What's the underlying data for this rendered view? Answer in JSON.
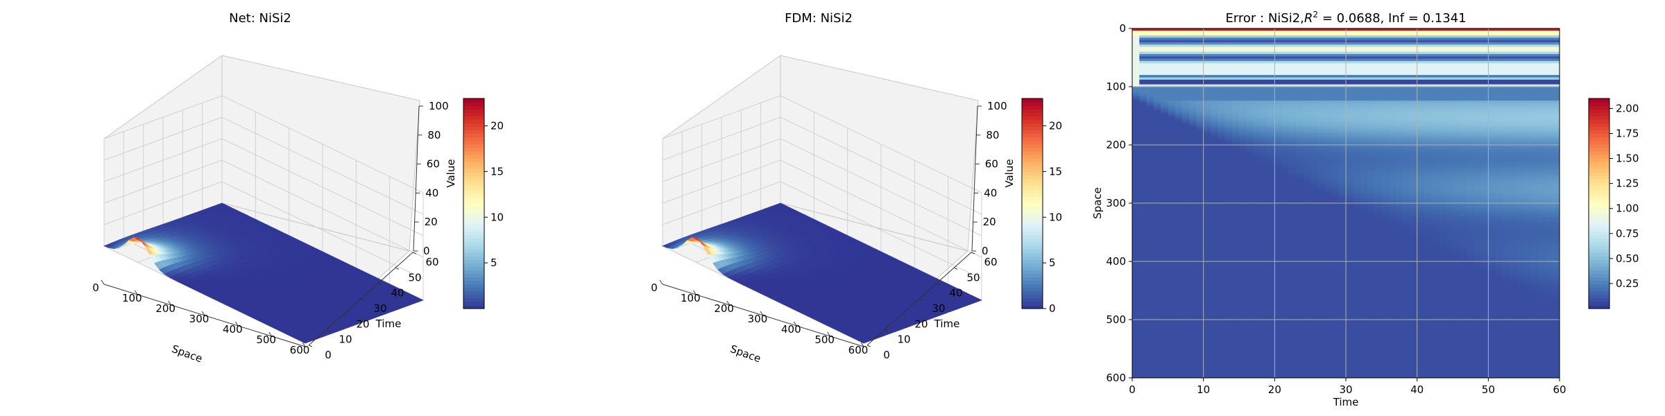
{
  "chart_data": [
    {
      "type": "surface3d",
      "title": "Net: NiSi2",
      "xlabel": "Space",
      "ylabel": "Time",
      "zlabel": "Value",
      "xlim": [
        0,
        600
      ],
      "ylim": [
        0,
        60
      ],
      "zlim": [
        0,
        100
      ],
      "xticks": [
        "0",
        "100",
        "200",
        "300",
        "400",
        "500",
        "600"
      ],
      "yticks": [
        "0",
        "10",
        "20",
        "30",
        "40",
        "50",
        "60"
      ],
      "zticks": [
        "0",
        "20",
        "40",
        "60",
        "80",
        "100"
      ],
      "colorbar": {
        "min": 0,
        "max": 23,
        "ticks": [
          "5",
          "10",
          "15",
          "20"
        ]
      },
      "peak": {
        "space": 100,
        "time": 0,
        "value": 23
      },
      "colormap": "RdYlBu_r"
    },
    {
      "type": "surface3d",
      "title": "FDM: NiSi2",
      "xlabel": "Space",
      "ylabel": "Time",
      "zlabel": "Value",
      "xlim": [
        0,
        600
      ],
      "ylim": [
        0,
        60
      ],
      "zlim": [
        0,
        100
      ],
      "xticks": [
        "0",
        "100",
        "200",
        "300",
        "400",
        "500",
        "600"
      ],
      "yticks": [
        "0",
        "10",
        "20",
        "30",
        "40",
        "50",
        "60"
      ],
      "zticks": [
        "0",
        "20",
        "40",
        "60",
        "80",
        "100"
      ],
      "colorbar": {
        "min": 0,
        "max": 23,
        "ticks": [
          "0",
          "5",
          "10",
          "15",
          "20"
        ]
      },
      "peak": {
        "space": 100,
        "time": 0,
        "value": 23
      },
      "colormap": "RdYlBu_r"
    },
    {
      "type": "heatmap",
      "title_prefix": "Error : NiSi2,",
      "title_r": "R",
      "title_sup": "2",
      "title_suffix": " = 0.0688, Inf = 0.1341",
      "xlabel": "Time",
      "ylabel": "Space",
      "xlim": [
        0,
        60
      ],
      "ylim": [
        600,
        0
      ],
      "xticks": [
        "0",
        "10",
        "20",
        "30",
        "40",
        "50",
        "60"
      ],
      "yticks": [
        "0",
        "100",
        "200",
        "300",
        "400",
        "500",
        "600"
      ],
      "grid": true,
      "colorbar": {
        "min": 0,
        "max": 2.1,
        "ticks": [
          "0.25",
          "0.50",
          "0.75",
          "1.00",
          "1.25",
          "1.50",
          "1.75",
          "2.00"
        ]
      },
      "colormap": "RdYlBu_r"
    }
  ]
}
